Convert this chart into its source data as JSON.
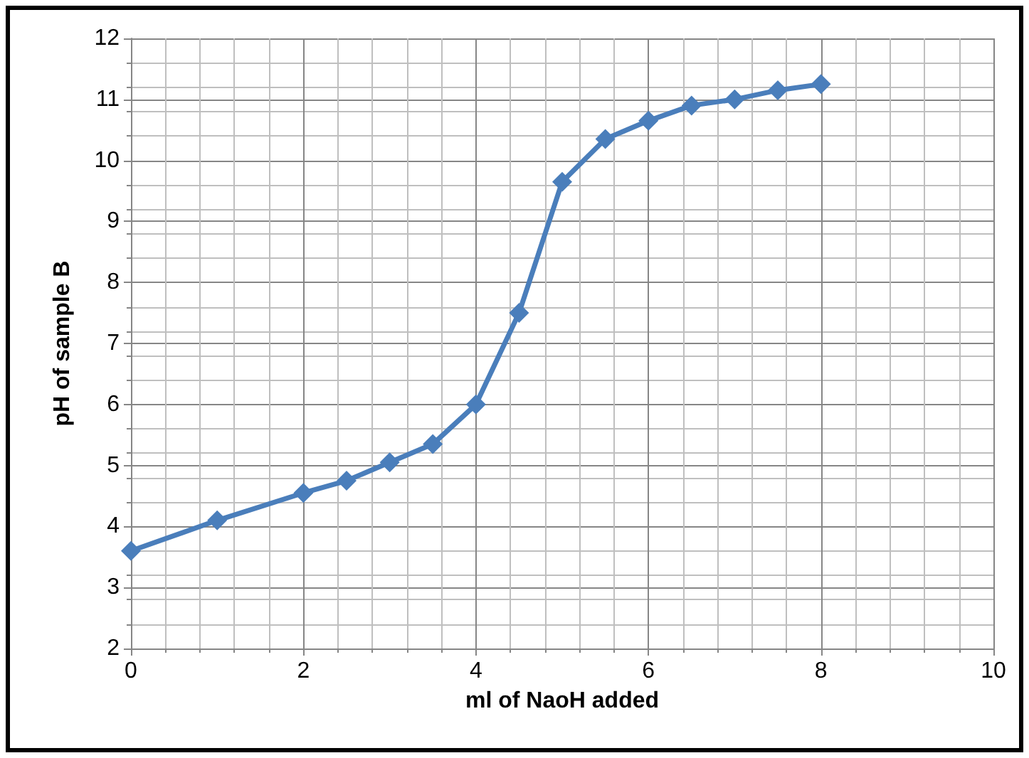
{
  "chart_data": {
    "type": "line",
    "xlabel": "ml of NaoH added",
    "ylabel": "pH of sample B",
    "x": [
      0,
      1,
      2,
      2.5,
      3,
      3.5,
      4,
      4.5,
      5,
      5.5,
      6,
      6.5,
      7,
      7.5,
      8
    ],
    "series": [
      {
        "color": "#4a7ebb",
        "values": [
          3.6,
          4.1,
          4.55,
          4.75,
          5.05,
          5.35,
          6.0,
          7.5,
          9.65,
          10.35,
          10.65,
          10.9,
          11.0,
          11.15,
          11.25
        ]
      }
    ],
    "xlim": [
      0,
      10
    ],
    "xticks": [
      0,
      2,
      4,
      6,
      8,
      10
    ],
    "ylim": [
      2,
      12
    ],
    "yticks": [
      2,
      3,
      4,
      5,
      6,
      7,
      8,
      9,
      10,
      11,
      12
    ],
    "grid": true,
    "marker": "diamond",
    "line_style": "solid"
  }
}
